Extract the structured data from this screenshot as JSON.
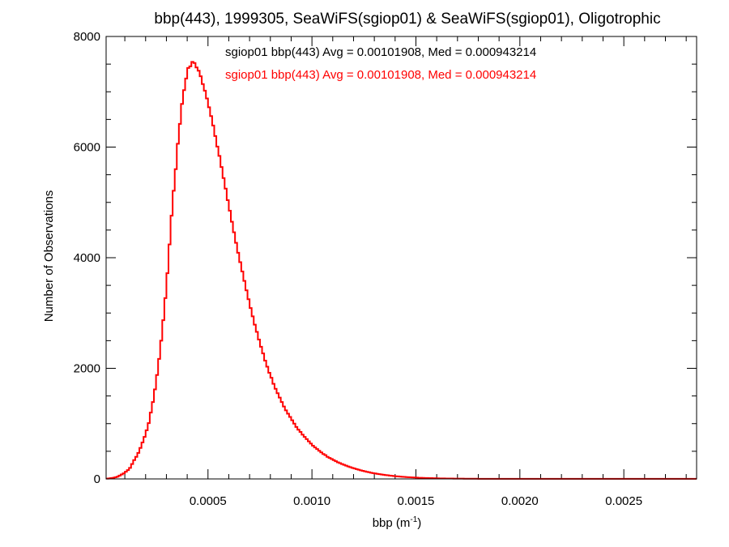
{
  "chart_data": {
    "type": "histogram",
    "title": "bbp(443), 1999305, SeaWiFS(sgiop01) & SeaWiFS(sgiop01), Oligotrophic",
    "xlabel": "bbp (m",
    "xlabel_superscript": "-1",
    "xlabel_close": ")",
    "ylabel": "Number of Observations",
    "xlim": [
      1e-05,
      0.00285
    ],
    "ylim": [
      0,
      8000
    ],
    "x_ticks": [
      0.0005,
      0.001,
      0.0015,
      0.002,
      0.0025
    ],
    "x_tick_labels": [
      "0.0005",
      "0.0010",
      "0.0015",
      "0.0020",
      "0.0025"
    ],
    "y_ticks": [
      0,
      2000,
      4000,
      6000,
      8000
    ],
    "y_tick_labels": [
      "0",
      "2000",
      "4000",
      "6000",
      "8000"
    ],
    "grid": false,
    "annotations": [
      {
        "text": "sgiop01 bbp(443) Avg = 0.00101908, Med = 0.000943214",
        "color": "#000000"
      },
      {
        "text": "sgiop01 bbp(443) Avg = 0.00101908, Med = 0.000943214",
        "color": "#ff0000"
      }
    ],
    "series": [
      {
        "color": "#ff0000",
        "bin_width": 1e-05,
        "x_start": 1e-05,
        "counts": [
          5,
          10,
          15,
          20,
          30,
          40,
          60,
          80,
          100,
          130,
          160,
          200,
          270,
          340,
          400,
          470,
          560,
          660,
          760,
          880,
          1010,
          1200,
          1390,
          1620,
          1880,
          2170,
          2500,
          2870,
          3270,
          3720,
          4240,
          4760,
          5210,
          5600,
          6060,
          6420,
          6780,
          7030,
          7240,
          7430,
          7460,
          7540,
          7520,
          7440,
          7380,
          7280,
          7140,
          7020,
          6880,
          6720,
          6560,
          6390,
          6200,
          6010,
          5840,
          5640,
          5440,
          5250,
          5040,
          4850,
          4650,
          4460,
          4270,
          4090,
          3920,
          3750,
          3580,
          3410,
          3250,
          3090,
          2940,
          2790,
          2660,
          2520,
          2390,
          2270,
          2140,
          2030,
          1920,
          1830,
          1720,
          1630,
          1550,
          1470,
          1390,
          1310,
          1240,
          1180,
          1120,
          1060,
          1000,
          940,
          890,
          850,
          800,
          760,
          720,
          680,
          640,
          600,
          570,
          540,
          510,
          480,
          450,
          430,
          400,
          380,
          360,
          340,
          320,
          300,
          285,
          270,
          255,
          240,
          225,
          212,
          200,
          188,
          177,
          166,
          156,
          146,
          137,
          128,
          120,
          112,
          105,
          98,
          92,
          86,
          80,
          75,
          70,
          65,
          60,
          56,
          52,
          48,
          45,
          42,
          39,
          36,
          33,
          31,
          29,
          27,
          25,
          23,
          21,
          20,
          18,
          17,
          16,
          15,
          14,
          13,
          12,
          11,
          10,
          9,
          9,
          8,
          8,
          7,
          7,
          6,
          6,
          5,
          5,
          5,
          4,
          4,
          4,
          3,
          3,
          3,
          3,
          2,
          2,
          2,
          2,
          2,
          2,
          1,
          1,
          1,
          1,
          1,
          1,
          1,
          1,
          1,
          1,
          1,
          1,
          1,
          1,
          1,
          1,
          1,
          1,
          1,
          1,
          1,
          1,
          1,
          1,
          1,
          1,
          1,
          1,
          1,
          1,
          1,
          1,
          1,
          1,
          1,
          1,
          1,
          1,
          1,
          1,
          1,
          1,
          1,
          1,
          1,
          1,
          1,
          1,
          1,
          1,
          1,
          1,
          1,
          1,
          1,
          1,
          1,
          1,
          1,
          1,
          1,
          1,
          1,
          1,
          1,
          1,
          1,
          1,
          1,
          1,
          1,
          1,
          1,
          1,
          1,
          1,
          1,
          1,
          1,
          1,
          1,
          1,
          1,
          1,
          1,
          1,
          1,
          1,
          1,
          1,
          1,
          1,
          1,
          1,
          1,
          1,
          1,
          1,
          1,
          1,
          1,
          1,
          1,
          1
        ]
      }
    ]
  }
}
